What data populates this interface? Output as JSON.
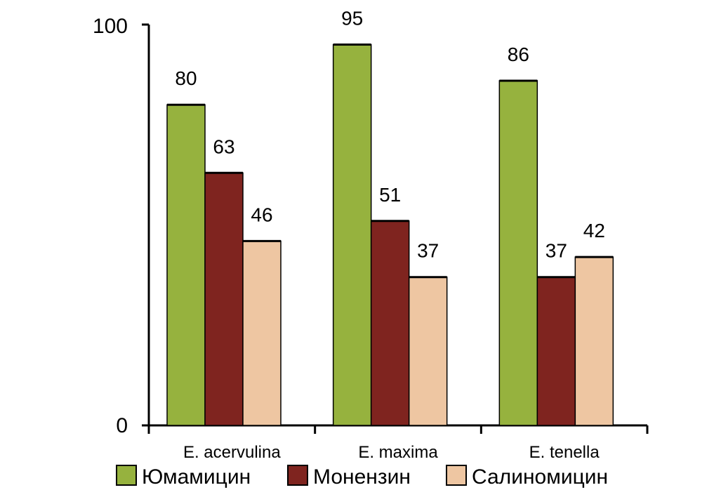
{
  "chart_data": {
    "type": "bar",
    "categories": [
      "E. acervulina",
      "E. maxima",
      "E. tenella"
    ],
    "series": [
      {
        "name": "Юмамицин",
        "values": [
          80,
          95,
          86
        ],
        "color": "#96b23e"
      },
      {
        "name": "Монензин",
        "values": [
          63,
          51,
          37
        ],
        "color": "#7f241f"
      },
      {
        "name": "Салиномицин",
        "values": [
          46,
          37,
          42
        ],
        "color": "#eec6a2"
      }
    ],
    "data_labels": [
      [
        "80",
        "63",
        "46"
      ],
      [
        "95",
        "51",
        "37"
      ],
      [
        "86",
        "37",
        "42"
      ]
    ],
    "y_ticks": [
      "0",
      "100"
    ],
    "ylim": [
      0,
      100
    ],
    "grid": false,
    "legend_position": "bottom"
  }
}
